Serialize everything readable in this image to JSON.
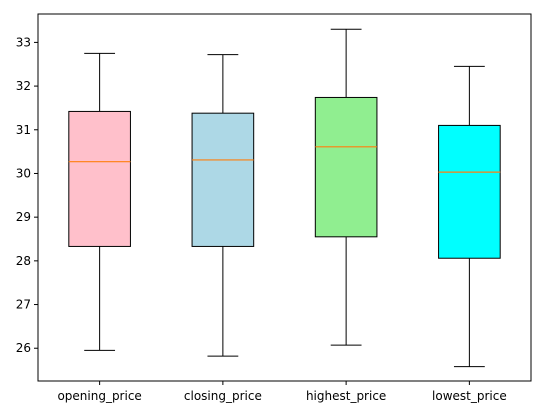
{
  "chart_data": {
    "type": "boxplot",
    "title": "",
    "xlabel": "",
    "ylabel": "",
    "ylim": [
      25.25,
      33.65
    ],
    "yticks": [
      26,
      27,
      28,
      29,
      30,
      31,
      32,
      33
    ],
    "grid": false,
    "categories": [
      "opening_price",
      "closing_price",
      "highest_price",
      "lowest_price"
    ],
    "boxes": [
      {
        "category": "opening_price",
        "whisker_low": 25.95,
        "q1": 28.33,
        "median": 30.27,
        "q3": 31.42,
        "whisker_high": 32.75,
        "color": "#ffc0cb"
      },
      {
        "category": "closing_price",
        "whisker_low": 25.82,
        "q1": 28.33,
        "median": 30.31,
        "q3": 31.38,
        "whisker_high": 32.72,
        "color": "#add8e6"
      },
      {
        "category": "highest_price",
        "whisker_low": 26.07,
        "q1": 28.55,
        "median": 30.61,
        "q3": 31.74,
        "whisker_high": 33.3,
        "color": "#90ee90"
      },
      {
        "category": "lowest_price",
        "whisker_low": 25.58,
        "q1": 28.06,
        "median": 30.03,
        "q3": 31.1,
        "whisker_high": 32.45,
        "color": "#00ffff"
      }
    ],
    "median_color": "#ff7f0e"
  }
}
